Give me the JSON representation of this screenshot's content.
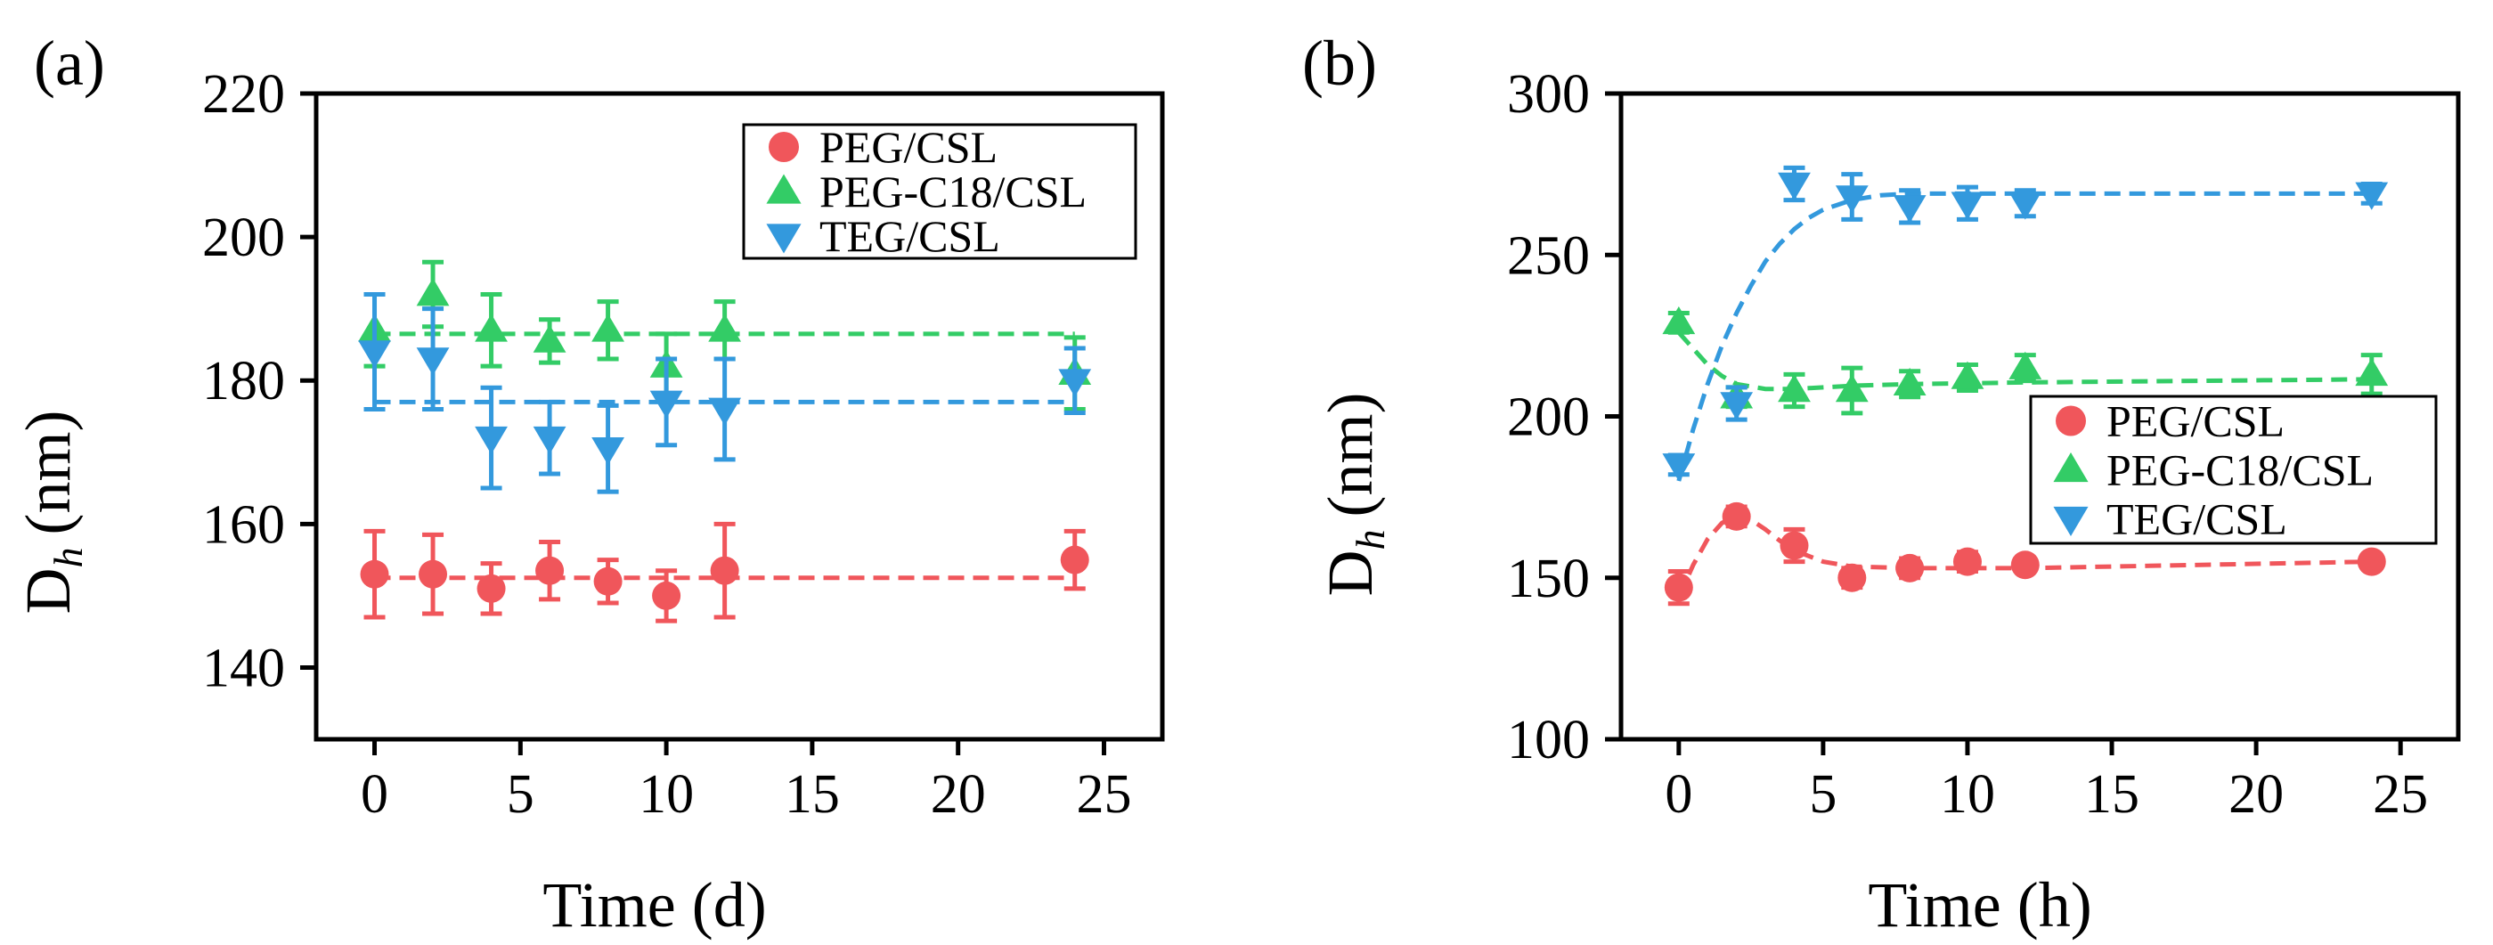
{
  "chart_data": [
    {
      "type": "scatter",
      "panel_label": "(a)",
      "xlabel": "Time (d)",
      "ylabel_main": "D",
      "ylabel_sub": "h",
      "ylabel_unit": "(nm)",
      "xlim": [
        -2,
        27
      ],
      "ylim": [
        130,
        220
      ],
      "xticks": [
        0,
        5,
        10,
        15,
        20,
        25
      ],
      "yticks": [
        140,
        160,
        180,
        200,
        220
      ],
      "legend_position": "top-right",
      "series": [
        {
          "name": "PEG/CSL",
          "marker": "circle",
          "color": "#f0565b",
          "x": [
            0,
            2,
            4,
            6,
            8,
            10,
            12,
            24
          ],
          "y": [
            153,
            153,
            151,
            153.5,
            152,
            150,
            153.5,
            155
          ],
          "err": [
            6,
            5.5,
            3.5,
            4,
            3,
            3.5,
            6.5,
            4
          ],
          "fit_level": 152.5
        },
        {
          "name": "PEG-C18/CSL",
          "marker": "triangle-up",
          "color": "#33cc66",
          "x": [
            0,
            2,
            4,
            6,
            8,
            10,
            12,
            24
          ],
          "y": [
            187,
            192,
            187,
            185.5,
            187,
            182,
            187,
            181
          ],
          "err": [
            5,
            4.5,
            5,
            3,
            4,
            4.5,
            4,
            5
          ],
          "fit_level": 186.5
        },
        {
          "name": "TEG/CSL",
          "marker": "triangle-down",
          "color": "#3399dd",
          "x": [
            0,
            2,
            4,
            6,
            8,
            10,
            12,
            24
          ],
          "y": [
            184,
            183,
            172,
            172,
            170.5,
            177,
            176,
            180
          ],
          "err": [
            8,
            7,
            7,
            5,
            6,
            6,
            7,
            4.5
          ],
          "fit_level": 177
        }
      ]
    },
    {
      "type": "scatter",
      "panel_label": "(b)",
      "xlabel": "Time (h)",
      "ylabel_main": "D",
      "ylabel_sub": "h",
      "ylabel_unit": "(nm)",
      "xlim": [
        -2,
        27
      ],
      "ylim": [
        100,
        300
      ],
      "xticks": [
        0,
        5,
        10,
        15,
        20,
        25
      ],
      "yticks": [
        100,
        150,
        200,
        250,
        300
      ],
      "legend_position": "center-right",
      "series": [
        {
          "name": "PEG/CSL",
          "marker": "circle",
          "color": "#f0565b",
          "x": [
            0,
            2,
            4,
            6,
            8,
            10,
            12,
            24
          ],
          "y": [
            147,
            169,
            160,
            150,
            153,
            155,
            154,
            155
          ],
          "err": [
            5,
            3,
            5,
            3,
            3,
            3,
            2,
            2
          ],
          "fit_curve": [
            [
              0,
              144
            ],
            [
              0.5,
              154
            ],
            [
              1,
              162
            ],
            [
              1.5,
              167
            ],
            [
              2,
              169
            ],
            [
              2.5,
              168
            ],
            [
              3,
              165
            ],
            [
              3.5,
              161.5
            ],
            [
              4,
              158.5
            ],
            [
              5,
              155
            ],
            [
              6,
              153.5
            ],
            [
              8,
              153
            ],
            [
              12,
              153
            ],
            [
              24,
              155
            ]
          ]
        },
        {
          "name": "PEG-C18/CSL",
          "marker": "triangle-up",
          "color": "#33cc66",
          "x": [
            0,
            2,
            4,
            6,
            8,
            10,
            12,
            24
          ],
          "y": [
            229,
            206,
            208,
            208,
            210,
            212,
            215,
            213
          ],
          "err": [
            3,
            3,
            5,
            7,
            4,
            4,
            4,
            6
          ],
          "fit_curve": [
            [
              0,
              226
            ],
            [
              0.5,
              221
            ],
            [
              1,
              216
            ],
            [
              1.5,
              212.5
            ],
            [
              2,
              210
            ],
            [
              3,
              208.5
            ],
            [
              4,
              208.5
            ],
            [
              6,
              209.5
            ],
            [
              8,
              210
            ],
            [
              12,
              210.5
            ],
            [
              24,
              211.5
            ]
          ]
        },
        {
          "name": "TEG/CSL",
          "marker": "triangle-down",
          "color": "#3399dd",
          "x": [
            0,
            2,
            4,
            6,
            8,
            10,
            12,
            24
          ],
          "y": [
            185,
            204,
            272,
            268,
            265,
            266,
            266,
            269
          ],
          "err": [
            3,
            5,
            5,
            7,
            5,
            5,
            4,
            3
          ],
          "fit_curve": [
            [
              0,
              180
            ],
            [
              0.5,
              196
            ],
            [
              1,
              210
            ],
            [
              1.5,
              222
            ],
            [
              2,
              232
            ],
            [
              2.5,
              240.5
            ],
            [
              3,
              248
            ],
            [
              3.5,
              253.5
            ],
            [
              4,
              258
            ],
            [
              4.5,
              261.5
            ],
            [
              5,
              264
            ],
            [
              6,
              267
            ],
            [
              7,
              268.5
            ],
            [
              8,
              269
            ],
            [
              12,
              269
            ],
            [
              24,
              269
            ]
          ]
        }
      ]
    }
  ]
}
